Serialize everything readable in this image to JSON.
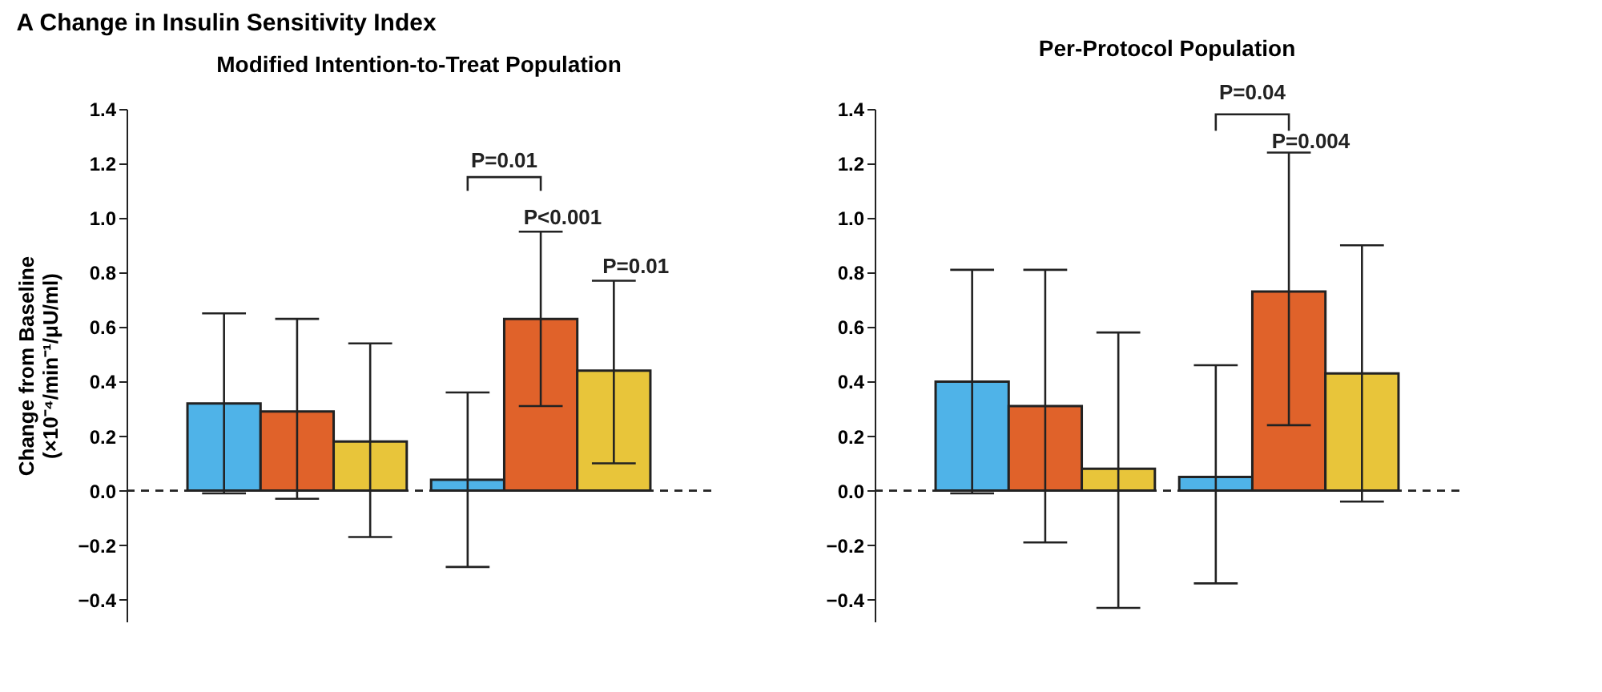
{
  "chart_data": [
    {
      "type": "bar",
      "title": "A  Change in Insulin Sensitivity Index",
      "subtitle": "Modified Intention-to-Treat Population",
      "ylabel": "Change from Baseline\n(×10⁻⁴/min⁻¹/μU/ml)",
      "categories": [
        null,
        null
      ],
      "series": [
        {
          "color": "#4fb3e8",
          "values": [
            0.32,
            0.04
          ],
          "errors": [
            [
              -0.01,
              0.65
            ],
            [
              -0.28,
              0.36
            ]
          ]
        },
        {
          "color": "#e0622a",
          "values": [
            0.29,
            0.63
          ],
          "errors": [
            [
              -0.03,
              0.63
            ],
            [
              0.31,
              0.95
            ]
          ]
        },
        {
          "color": "#e8c53a",
          "values": [
            0.18,
            0.44
          ],
          "errors": [
            [
              -0.17,
              0.54
            ],
            [
              0.1,
              0.77
            ]
          ]
        }
      ],
      "ylim": [
        -0.48,
        1.4
      ],
      "yticks": [
        {
          "value": -0.4,
          "label": "−0.4"
        },
        {
          "value": -0.2,
          "label": "−0.2"
        },
        {
          "value": 0,
          "label": "0.0"
        },
        {
          "value": 0.2,
          "label": "0.2"
        },
        {
          "value": 0.4,
          "label": "0.4"
        },
        {
          "value": 0.6,
          "label": "0.6"
        },
        {
          "value": 0.8,
          "label": "0.8"
        },
        {
          "value": 1.0,
          "label": "1.0"
        },
        {
          "value": 1.2,
          "label": "1.2"
        },
        {
          "value": 1.4,
          "label": "1.4"
        }
      ],
      "ref_lines": [
        {
          "axis": "y",
          "value": 0,
          "color": "#222222",
          "line_style": "dashed"
        }
      ],
      "annotations": [
        "P=0.01",
        "P<0.001",
        "P=0.01"
      ],
      "grid": false,
      "tick_labels": "y"
    },
    {
      "type": "bar",
      "subtitle": "Per-Protocol Population",
      "categories": [
        null,
        null
      ],
      "series": [
        {
          "color": "#4fb3e8",
          "values": [
            0.4,
            0.05
          ],
          "errors": [
            [
              -0.01,
              0.81
            ],
            [
              -0.34,
              0.46
            ]
          ]
        },
        {
          "color": "#e0622a",
          "values": [
            0.31,
            0.73
          ],
          "errors": [
            [
              -0.19,
              0.81
            ],
            [
              0.24,
              1.24
            ]
          ]
        },
        {
          "color": "#e8c53a",
          "values": [
            0.08,
            0.43
          ],
          "errors": [
            [
              -0.43,
              0.58
            ],
            [
              -0.04,
              0.9
            ]
          ]
        }
      ],
      "ylim": [
        -0.48,
        1.4
      ],
      "yticks": [
        {
          "value": -0.4,
          "label": "−0.4"
        },
        {
          "value": -0.2,
          "label": "−0.2"
        },
        {
          "value": 0,
          "label": "0.0"
        },
        {
          "value": 0.2,
          "label": "0.2"
        },
        {
          "value": 0.4,
          "label": "0.4"
        },
        {
          "value": 0.6,
          "label": "0.6"
        },
        {
          "value": 0.8,
          "label": "0.8"
        },
        {
          "value": 1.0,
          "label": "1.0"
        },
        {
          "value": 1.2,
          "label": "1.2"
        },
        {
          "value": 1.4,
          "label": "1.4"
        }
      ],
      "ref_lines": [
        {
          "axis": "y",
          "value": 0,
          "color": "#222222",
          "line_style": "dashed"
        }
      ],
      "annotations": [
        "P=0.04",
        "P=0.004"
      ],
      "grid": false,
      "tick_labels": "y"
    }
  ]
}
